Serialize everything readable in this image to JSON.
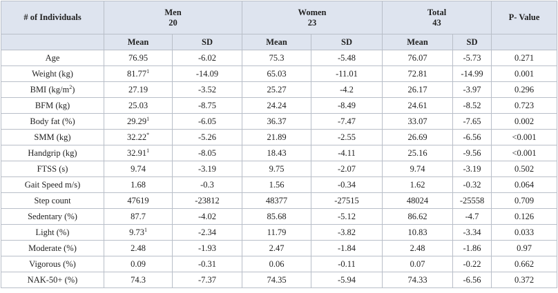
{
  "table": {
    "corner": "# of Individuals",
    "groups": [
      {
        "name": "Men",
        "n": "20"
      },
      {
        "name": "Women",
        "n": "23"
      },
      {
        "name": "Total",
        "n": "43"
      }
    ],
    "p_value": "P- Value",
    "subheaders": [
      "Mean",
      "SD",
      "Mean",
      "SD",
      "Mean",
      "SD"
    ],
    "rows": [
      [
        "Age",
        "76.95",
        "-6.02",
        "75.3",
        "-5.48",
        "76.07",
        "-5.73",
        "0.271"
      ],
      [
        "Weight (kg)",
        {
          "text": "81.77",
          "sup": "1"
        },
        "-14.09",
        "65.03",
        "-11.01",
        "72.81",
        "-14.99",
        "0.001"
      ],
      [
        {
          "text": "BMI (kg/m",
          "sup": "2",
          "after": ")"
        },
        "27.19",
        "-3.52",
        "25.27",
        "-4.2",
        "26.17",
        "-3.97",
        "0.296"
      ],
      [
        "BFM (kg)",
        "25.03",
        "-8.75",
        "24.24",
        "-8.49",
        "24.61",
        "-8.52",
        "0.723"
      ],
      [
        "Body fat (%)",
        {
          "text": "29.29",
          "sup": "1"
        },
        "-6.05",
        "36.37",
        "-7.47",
        "33.07",
        "-7.65",
        "0.002"
      ],
      [
        "SMM (kg)",
        {
          "text": "32.22",
          "sup": "*"
        },
        "-5.26",
        "21.89",
        "-2.55",
        "26.69",
        "-6.56",
        "<0.001"
      ],
      [
        "Handgrip (kg)",
        {
          "text": "32.91",
          "sup": "1"
        },
        "-8.05",
        "18.43",
        "-4.11",
        "25.16",
        "-9.56",
        "<0.001"
      ],
      [
        "FTSS (s)",
        "9.74",
        "-3.19",
        "9.75",
        "-2.07",
        "9.74",
        "-3.19",
        "0.502"
      ],
      [
        "Gait Speed m/s)",
        "1.68",
        "-0.3",
        "1.56",
        "-0.34",
        "1.62",
        "-0.32",
        "0.064"
      ],
      [
        "Step count",
        "47619",
        "-23812",
        "48377",
        "-27515",
        "48024",
        "-25558",
        "0.709"
      ],
      [
        "Sedentary (%)",
        "87.7",
        "-4.02",
        "85.68",
        "-5.12",
        "86.62",
        "-4.7",
        "0.126"
      ],
      [
        "Light (%)",
        {
          "text": "9.73",
          "sup": "1"
        },
        "-2.34",
        "11.79",
        "-3.82",
        "10.83",
        "-3.34",
        "0.033"
      ],
      [
        "Moderate (%)",
        "2.48",
        "-1.93",
        "2.47",
        "-1.84",
        "2.48",
        "-1.86",
        "0.97"
      ],
      [
        "Vigorous (%)",
        "0.09",
        "-0.31",
        "0.06",
        "-0.11",
        "0.07",
        "-0.22",
        "0.662"
      ],
      [
        "NAK-50+ (%)",
        "74.3",
        "-7.37",
        "74.35",
        "-5.94",
        "74.33",
        "-6.56",
        "0.372"
      ]
    ]
  }
}
